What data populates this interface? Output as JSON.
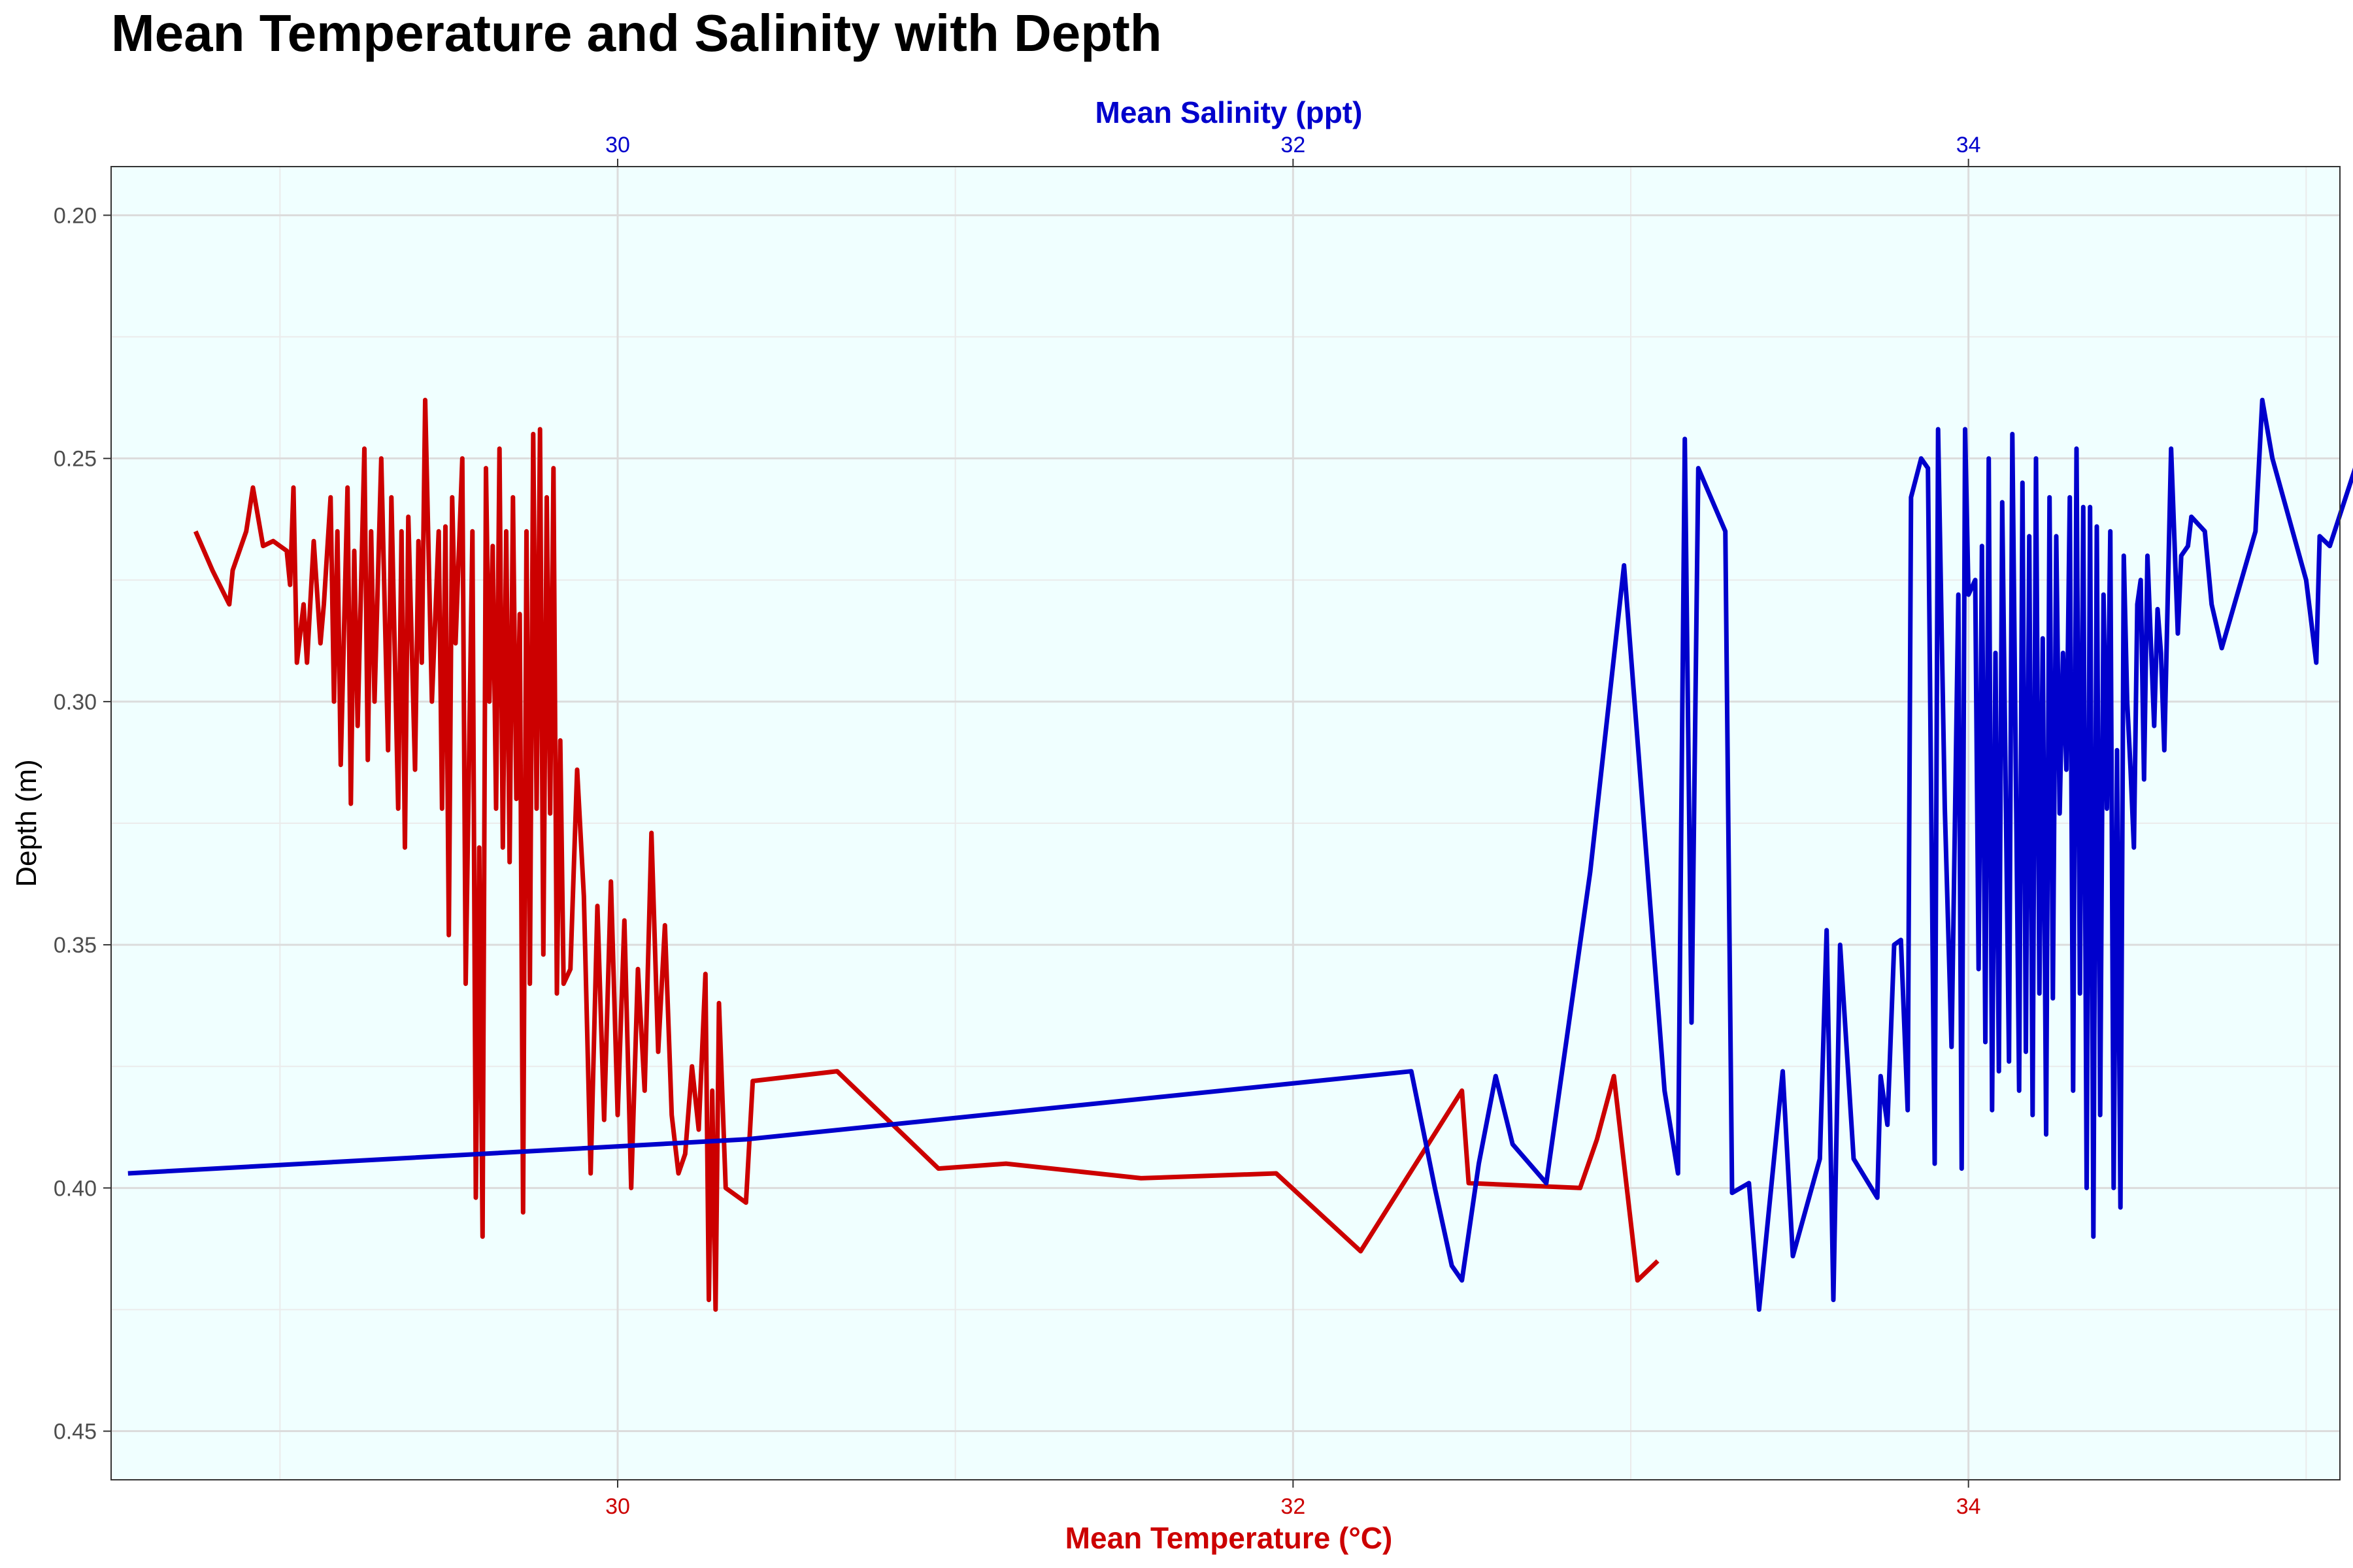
{
  "chart_data": {
    "type": "line",
    "title": "Mean Temperature and Salinity with Depth",
    "xlabel": "Mean Temperature (°C)",
    "x2label": "Mean Salinity (ppt)",
    "ylabel": "Depth (m)",
    "xlim": [
      28.5,
      35.1
    ],
    "ylim": [
      0.19,
      0.46
    ],
    "y_reversed": true,
    "grid": true,
    "x_ticks": [
      "30",
      "32",
      "34"
    ],
    "x_tick_values": [
      30,
      32,
      34
    ],
    "x2_ticks": [
      "30",
      "32",
      "34"
    ],
    "x2_tick_values": [
      30,
      32,
      34
    ],
    "y_ticks": [
      "0.20",
      "0.25",
      "0.30",
      "0.35",
      "0.40",
      "0.45"
    ],
    "y_tick_values": [
      0.2,
      0.25,
      0.3,
      0.35,
      0.4,
      0.45
    ],
    "colors": {
      "temperature": "#cc0000",
      "salinity": "#0000cc",
      "panel": "#f0ffff",
      "grid_major": "#dcdcdc",
      "grid_minor": "#ebebeb"
    },
    "series": [
      {
        "axis": "bottom",
        "color": "#cc0000",
        "points": [
          [
            28.75,
            0.265
          ],
          [
            28.8,
            0.273
          ],
          [
            28.85,
            0.28
          ],
          [
            28.86,
            0.273
          ],
          [
            28.9,
            0.265
          ],
          [
            28.92,
            0.256
          ],
          [
            28.95,
            0.268
          ],
          [
            28.98,
            0.267
          ],
          [
            29.0,
            0.268
          ],
          [
            29.02,
            0.269
          ],
          [
            29.03,
            0.276
          ],
          [
            29.04,
            0.256
          ],
          [
            29.05,
            0.292
          ],
          [
            29.07,
            0.28
          ],
          [
            29.08,
            0.292
          ],
          [
            29.1,
            0.267
          ],
          [
            29.12,
            0.288
          ],
          [
            29.13,
            0.28
          ],
          [
            29.15,
            0.258
          ],
          [
            29.16,
            0.3
          ],
          [
            29.17,
            0.265
          ],
          [
            29.18,
            0.313
          ],
          [
            29.2,
            0.256
          ],
          [
            29.21,
            0.321
          ],
          [
            29.22,
            0.269
          ],
          [
            29.23,
            0.305
          ],
          [
            29.25,
            0.248
          ],
          [
            29.26,
            0.312
          ],
          [
            29.27,
            0.265
          ],
          [
            29.28,
            0.3
          ],
          [
            29.3,
            0.25
          ],
          [
            29.32,
            0.31
          ],
          [
            29.33,
            0.258
          ],
          [
            29.35,
            0.322
          ],
          [
            29.36,
            0.265
          ],
          [
            29.37,
            0.33
          ],
          [
            29.38,
            0.262
          ],
          [
            29.4,
            0.314
          ],
          [
            29.41,
            0.267
          ],
          [
            29.42,
            0.292
          ],
          [
            29.43,
            0.238
          ],
          [
            29.45,
            0.3
          ],
          [
            29.47,
            0.265
          ],
          [
            29.48,
            0.322
          ],
          [
            29.49,
            0.264
          ],
          [
            29.5,
            0.348
          ],
          [
            29.51,
            0.258
          ],
          [
            29.52,
            0.288
          ],
          [
            29.54,
            0.25
          ],
          [
            29.55,
            0.358
          ],
          [
            29.57,
            0.265
          ],
          [
            29.58,
            0.402
          ],
          [
            29.59,
            0.33
          ],
          [
            29.6,
            0.41
          ],
          [
            29.61,
            0.252
          ],
          [
            29.62,
            0.3
          ],
          [
            29.63,
            0.268
          ],
          [
            29.64,
            0.322
          ],
          [
            29.65,
            0.248
          ],
          [
            29.66,
            0.33
          ],
          [
            29.67,
            0.265
          ],
          [
            29.68,
            0.333
          ],
          [
            29.69,
            0.258
          ],
          [
            29.7,
            0.32
          ],
          [
            29.71,
            0.282
          ],
          [
            29.72,
            0.405
          ],
          [
            29.73,
            0.265
          ],
          [
            29.74,
            0.358
          ],
          [
            29.75,
            0.245
          ],
          [
            29.76,
            0.322
          ],
          [
            29.77,
            0.244
          ],
          [
            29.78,
            0.352
          ],
          [
            29.79,
            0.258
          ],
          [
            29.8,
            0.323
          ],
          [
            29.81,
            0.252
          ],
          [
            29.82,
            0.36
          ],
          [
            29.83,
            0.308
          ],
          [
            29.84,
            0.358
          ],
          [
            29.86,
            0.355
          ],
          [
            29.88,
            0.314
          ],
          [
            29.9,
            0.34
          ],
          [
            29.92,
            0.397
          ],
          [
            29.94,
            0.342
          ],
          [
            29.96,
            0.386
          ],
          [
            29.98,
            0.337
          ],
          [
            30.0,
            0.385
          ],
          [
            30.02,
            0.345
          ],
          [
            30.04,
            0.4
          ],
          [
            30.06,
            0.355
          ],
          [
            30.08,
            0.38
          ],
          [
            30.1,
            0.327
          ],
          [
            30.12,
            0.372
          ],
          [
            30.14,
            0.346
          ],
          [
            30.16,
            0.385
          ],
          [
            30.18,
            0.397
          ],
          [
            30.2,
            0.393
          ],
          [
            30.22,
            0.375
          ],
          [
            30.24,
            0.388
          ],
          [
            30.26,
            0.356
          ],
          [
            30.27,
            0.423
          ],
          [
            30.28,
            0.38
          ],
          [
            30.29,
            0.425
          ],
          [
            30.3,
            0.362
          ],
          [
            30.32,
            0.4
          ],
          [
            30.38,
            0.403
          ],
          [
            30.4,
            0.378
          ],
          [
            30.65,
            0.376
          ],
          [
            30.95,
            0.396
          ],
          [
            31.15,
            0.395
          ],
          [
            31.55,
            0.398
          ],
          [
            31.95,
            0.397
          ],
          [
            32.2,
            0.413
          ],
          [
            32.5,
            0.38
          ],
          [
            32.52,
            0.399
          ],
          [
            32.85,
            0.4
          ],
          [
            32.9,
            0.39
          ],
          [
            32.95,
            0.377
          ],
          [
            33.02,
            0.419
          ],
          [
            33.08,
            0.415
          ]
        ]
      },
      {
        "axis": "top",
        "color": "#0000cc",
        "points": [
          [
            28.55,
            0.397
          ],
          [
            30.38,
            0.39
          ],
          [
            32.35,
            0.376
          ],
          [
            32.42,
            0.4
          ],
          [
            32.47,
            0.416
          ],
          [
            32.5,
            0.419
          ],
          [
            32.55,
            0.395
          ],
          [
            32.6,
            0.377
          ],
          [
            32.65,
            0.391
          ],
          [
            32.75,
            0.399
          ],
          [
            32.88,
            0.335
          ],
          [
            32.98,
            0.272
          ],
          [
            33.1,
            0.38
          ],
          [
            33.14,
            0.397
          ],
          [
            33.16,
            0.246
          ],
          [
            33.18,
            0.366
          ],
          [
            33.2,
            0.252
          ],
          [
            33.28,
            0.265
          ],
          [
            33.3,
            0.401
          ],
          [
            33.35,
            0.399
          ],
          [
            33.38,
            0.425
          ],
          [
            33.45,
            0.376
          ],
          [
            33.48,
            0.414
          ],
          [
            33.56,
            0.394
          ],
          [
            33.58,
            0.347
          ],
          [
            33.6,
            0.423
          ],
          [
            33.62,
            0.35
          ],
          [
            33.66,
            0.394
          ],
          [
            33.73,
            0.402
          ],
          [
            33.74,
            0.377
          ],
          [
            33.76,
            0.387
          ],
          [
            33.78,
            0.35
          ],
          [
            33.8,
            0.349
          ],
          [
            33.82,
            0.384
          ],
          [
            33.83,
            0.258
          ],
          [
            33.86,
            0.25
          ],
          [
            33.88,
            0.252
          ],
          [
            33.9,
            0.395
          ],
          [
            33.91,
            0.244
          ],
          [
            33.93,
            0.322
          ],
          [
            33.95,
            0.371
          ],
          [
            33.97,
            0.278
          ],
          [
            33.98,
            0.396
          ],
          [
            33.99,
            0.244
          ],
          [
            34.0,
            0.278
          ],
          [
            34.02,
            0.275
          ],
          [
            34.03,
            0.355
          ],
          [
            34.04,
            0.268
          ],
          [
            34.05,
            0.37
          ],
          [
            34.06,
            0.25
          ],
          [
            34.07,
            0.384
          ],
          [
            34.08,
            0.29
          ],
          [
            34.09,
            0.376
          ],
          [
            34.1,
            0.259
          ],
          [
            34.12,
            0.374
          ],
          [
            34.13,
            0.245
          ],
          [
            34.14,
            0.312
          ],
          [
            34.15,
            0.38
          ],
          [
            34.16,
            0.255
          ],
          [
            34.17,
            0.372
          ],
          [
            34.18,
            0.266
          ],
          [
            34.19,
            0.385
          ],
          [
            34.2,
            0.25
          ],
          [
            34.21,
            0.36
          ],
          [
            34.22,
            0.287
          ],
          [
            34.23,
            0.389
          ],
          [
            34.24,
            0.258
          ],
          [
            34.25,
            0.361
          ],
          [
            34.26,
            0.266
          ],
          [
            34.27,
            0.323
          ],
          [
            34.28,
            0.29
          ],
          [
            34.29,
            0.314
          ],
          [
            34.3,
            0.258
          ],
          [
            34.31,
            0.38
          ],
          [
            34.32,
            0.248
          ],
          [
            34.33,
            0.36
          ],
          [
            34.34,
            0.26
          ],
          [
            34.35,
            0.4
          ],
          [
            34.36,
            0.26
          ],
          [
            34.37,
            0.41
          ],
          [
            34.38,
            0.264
          ],
          [
            34.39,
            0.385
          ],
          [
            34.4,
            0.278
          ],
          [
            34.41,
            0.322
          ],
          [
            34.42,
            0.265
          ],
          [
            34.43,
            0.4
          ],
          [
            34.44,
            0.31
          ],
          [
            34.45,
            0.404
          ],
          [
            34.46,
            0.27
          ],
          [
            34.47,
            0.3
          ],
          [
            34.48,
            0.314
          ],
          [
            34.49,
            0.33
          ],
          [
            34.5,
            0.28
          ],
          [
            34.51,
            0.275
          ],
          [
            34.52,
            0.316
          ],
          [
            34.53,
            0.27
          ],
          [
            34.55,
            0.305
          ],
          [
            34.56,
            0.281
          ],
          [
            34.57,
            0.29
          ],
          [
            34.58,
            0.31
          ],
          [
            34.6,
            0.248
          ],
          [
            34.62,
            0.286
          ],
          [
            34.63,
            0.27
          ],
          [
            34.65,
            0.268
          ],
          [
            34.66,
            0.262
          ],
          [
            34.7,
            0.265
          ],
          [
            34.72,
            0.28
          ],
          [
            34.75,
            0.289
          ],
          [
            34.85,
            0.265
          ],
          [
            34.87,
            0.238
          ],
          [
            34.9,
            0.25
          ],
          [
            35.0,
            0.275
          ],
          [
            35.03,
            0.292
          ],
          [
            35.04,
            0.266
          ],
          [
            35.07,
            0.268
          ],
          [
            35.15,
            0.251
          ]
        ]
      }
    ]
  }
}
